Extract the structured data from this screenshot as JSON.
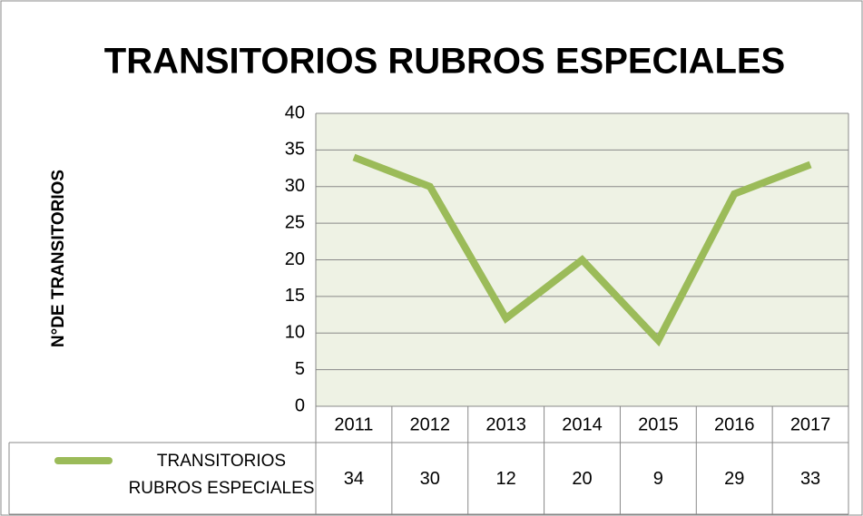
{
  "chart_data": {
    "type": "line",
    "title": "TRANSITORIOS RUBROS ESPECIALES",
    "y_label": "N°DE TRANSITORIOS",
    "categories": [
      "2011",
      "2012",
      "2013",
      "2014",
      "2015",
      "2016",
      "2017"
    ],
    "series": [
      {
        "name": "TRANSITORIOS RUBROS ESPECIALES",
        "color": "#9bbb59",
        "values": [
          34,
          30,
          12,
          20,
          9,
          29,
          33
        ]
      }
    ],
    "ylim": [
      0,
      40
    ],
    "yticks": [
      0,
      5,
      10,
      15,
      20,
      25,
      30,
      35,
      40
    ],
    "grid": true
  }
}
